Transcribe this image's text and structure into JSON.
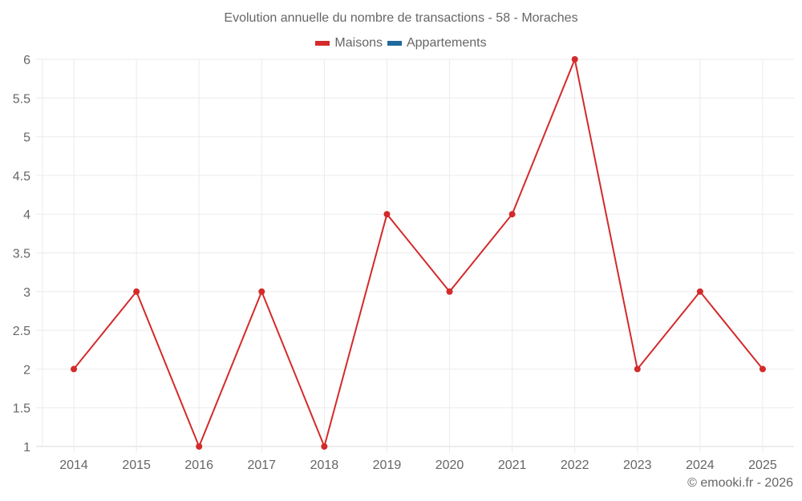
{
  "chart_data": {
    "type": "line",
    "title": "Evolution annuelle du nombre de transactions - 58 - Moraches",
    "categories": [
      "2014",
      "2015",
      "2016",
      "2017",
      "2018",
      "2019",
      "2020",
      "2021",
      "2022",
      "2023",
      "2024",
      "2025"
    ],
    "series": [
      {
        "name": "Maisons",
        "color": "#d42a2a",
        "values": [
          2,
          3,
          1,
          3,
          1,
          4,
          3,
          4,
          6,
          2,
          3,
          2
        ]
      },
      {
        "name": "Appartements",
        "color": "#1f6a9e",
        "values": []
      }
    ],
    "xlabel": "",
    "ylabel": "",
    "ylim": [
      1,
      6
    ],
    "yticks": [
      "1",
      "1.5",
      "2",
      "2.5",
      "3",
      "3.5",
      "4",
      "4.5",
      "5",
      "5.5",
      "6"
    ],
    "grid": true,
    "legend_position": "top"
  },
  "legend": {
    "items": [
      {
        "label": "Maisons",
        "color": "#d42a2a"
      },
      {
        "label": "Appartements",
        "color": "#1f6a9e"
      }
    ]
  },
  "credit": "© emooki.fr - 2026"
}
